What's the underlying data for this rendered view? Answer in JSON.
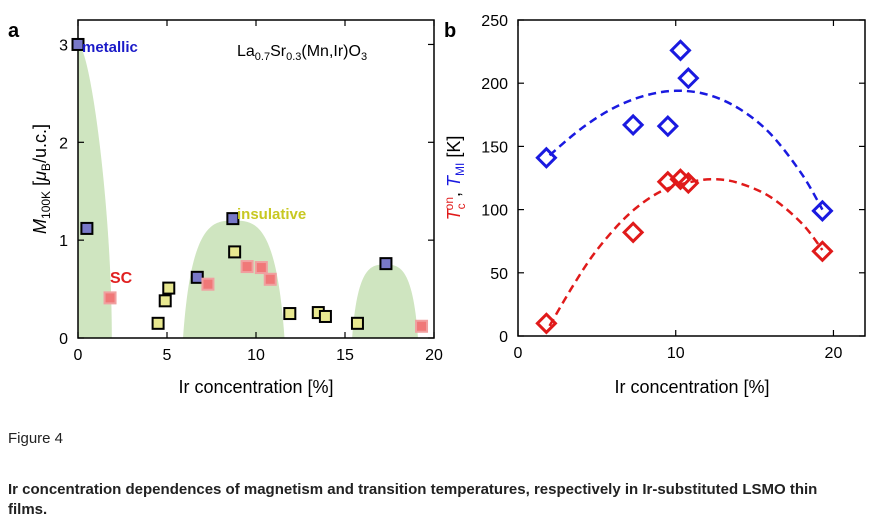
{
  "figure": {
    "title": "Figure 4",
    "caption": "Ir concentration dependences of magnetism and transition temperatures, respectively in Ir-substituted LSMO thin films."
  },
  "colors": {
    "metallic": "#7878c8",
    "insulative": "#e8e890",
    "sc": "#f07878",
    "region": "#cfe5c0",
    "tmi": "#1a1ae0",
    "tc": "#e01a1a"
  },
  "chart_data": [
    {
      "panel": "a",
      "type": "scatter",
      "annotation": {
        "formula": {
          "base": "La",
          "s1": "0.7",
          "mid": "Sr",
          "s2": "0.3",
          "tail": "(Mn,Ir)O",
          "s3": "3"
        },
        "metallic": "metallic",
        "insulative": "insulative",
        "sc": "SC"
      },
      "xlabel": "Ir concentration [%]",
      "ylabel": {
        "main": "M",
        "sub": "100K",
        "unit_open": " [",
        "mu": "μ",
        "mu_sub": "B",
        "unit_close": "/u.c.]"
      },
      "xlim": [
        0,
        20
      ],
      "ylim": [
        0,
        3.25
      ],
      "xticks": [
        "0",
        "5",
        "10",
        "15",
        "20"
      ],
      "yticks": [
        "0",
        "1",
        "2",
        "3"
      ],
      "ytick_values": [
        0,
        1,
        2,
        3
      ],
      "xtick_values": [
        0,
        5,
        10,
        15,
        20
      ],
      "series": [
        {
          "name": "metallic",
          "x": [
            0.0,
            0.5,
            6.7,
            8.7,
            17.3
          ],
          "y": [
            3.0,
            1.12,
            0.62,
            1.22,
            0.76
          ]
        },
        {
          "name": "insulative",
          "x": [
            4.5,
            4.9,
            5.1,
            8.8,
            11.9,
            13.5,
            13.9,
            15.7
          ],
          "y": [
            0.15,
            0.38,
            0.51,
            0.88,
            0.25,
            0.26,
            0.22,
            0.15
          ]
        },
        {
          "name": "SC",
          "x": [
            1.8,
            7.3,
            9.5,
            10.3,
            10.8,
            19.3
          ],
          "y": [
            0.41,
            0.55,
            0.73,
            0.72,
            0.6,
            0.12
          ]
        }
      ],
      "regions": [
        {
          "x_from": 0.0,
          "x_to": 1.9,
          "y_max": 3.0
        },
        {
          "x_from": 5.9,
          "x_to": 11.6,
          "y_max": 1.2
        },
        {
          "x_from": 15.4,
          "x_to": 19.1,
          "y_max": 0.75
        }
      ]
    },
    {
      "panel": "b",
      "type": "scatter",
      "xlabel": "Ir concentration [%]",
      "ylabel": {
        "tc": "T",
        "tc_sub": "c",
        "tc_sup": "on",
        "sep": ", ",
        "tmi": "T",
        "tmi_sub": "MI",
        "unit": " [K]"
      },
      "xlim": [
        0,
        22
      ],
      "ylim": [
        0,
        250
      ],
      "xticks": [
        "0",
        "10",
        "20"
      ],
      "xtick_values": [
        0,
        10,
        20
      ],
      "yticks": [
        "0",
        "50",
        "100",
        "150",
        "200",
        "250"
      ],
      "ytick_values": [
        0,
        50,
        100,
        150,
        200,
        250
      ],
      "series": [
        {
          "name": "T_MI",
          "x": [
            1.8,
            7.3,
            9.5,
            10.3,
            10.8,
            19.3
          ],
          "y": [
            141,
            167,
            166,
            226,
            204,
            99
          ]
        },
        {
          "name": "T_c^on",
          "x": [
            1.8,
            7.3,
            9.5,
            10.3,
            10.8,
            19.3
          ],
          "y": [
            10,
            82,
            122,
            124,
            121,
            67
          ]
        }
      ],
      "trend_lines": [
        {
          "series": "T_MI",
          "x": [
            2.0,
            4.0,
            6.0,
            8.0,
            10.0,
            12.0,
            14.0,
            16.0,
            18.0,
            19.3
          ],
          "y": [
            143,
            164,
            180,
            190,
            194,
            191,
            180,
            160,
            128,
            100
          ]
        },
        {
          "series": "T_c^on",
          "x": [
            2.0,
            3.5,
            5.0,
            7.0,
            9.0,
            11.0,
            12.5,
            14.0,
            16.0,
            18.0,
            19.3
          ],
          "y": [
            8,
            40,
            68,
            96,
            114,
            122,
            124,
            121,
            110,
            89,
            68
          ]
        }
      ]
    }
  ]
}
